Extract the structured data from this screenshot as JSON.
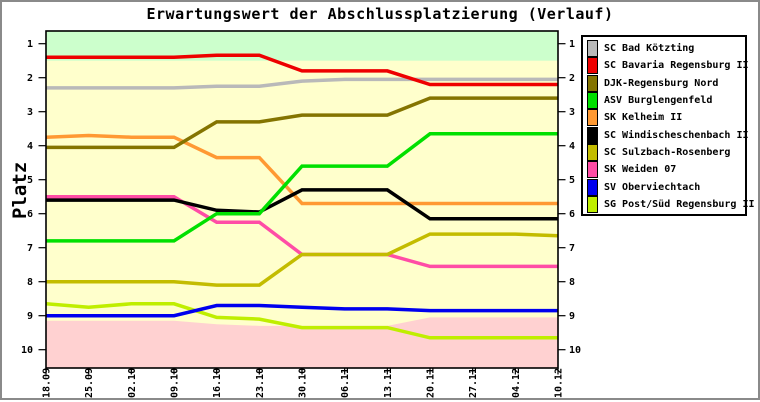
{
  "frame": {
    "border_color": "#8a8a8a",
    "background": "#ffffff"
  },
  "chart_data": {
    "type": "line",
    "title": "Erwartungswert der Abschlussplatzierung (Verlauf)",
    "ylabel": "Platz",
    "y_axis": {
      "ticks": [
        1,
        2,
        3,
        4,
        5,
        6,
        7,
        8,
        9,
        10
      ],
      "inverted": true,
      "top_visible": 0.63,
      "bottom_visible": 10.55
    },
    "x_axis": {
      "tick_labels": [
        "18.09",
        "25.09",
        "02.10",
        "09.10",
        "16.10",
        "23.10",
        "30.10",
        "06.11",
        "13.11",
        "20.11",
        "27.11",
        "04.12",
        "10.12"
      ],
      "rotation_deg": -90
    },
    "zones": {
      "promotion": {
        "color": "#ccffcc",
        "to_place": 1.5
      },
      "neutral": {
        "color": "#ffffcc"
      },
      "relegation": {
        "color": "#ffd1d1",
        "boundary_by_date": [
          9.15,
          9.15,
          9.15,
          9.15,
          9.25,
          9.3,
          9.3,
          9.3,
          9.3,
          9.05,
          9.05,
          9.05,
          9.05
        ]
      }
    },
    "series": [
      {
        "name": "SC Bad Kötzting",
        "color": "#b9b9b9",
        "values": [
          2.3,
          2.3,
          2.3,
          2.3,
          2.25,
          2.25,
          2.1,
          2.05,
          2.05,
          2.05,
          2.05,
          2.05,
          2.05
        ]
      },
      {
        "name": "SC Bavaria Regensburg II",
        "color": "#ee0000",
        "values": [
          1.4,
          1.4,
          1.4,
          1.4,
          1.34,
          1.34,
          1.8,
          1.8,
          1.8,
          2.2,
          2.2,
          2.2,
          2.2
        ]
      },
      {
        "name": "DJK-Regensburg Nord",
        "color": "#847400",
        "values": [
          4.05,
          4.05,
          4.05,
          4.05,
          3.3,
          3.3,
          3.1,
          3.1,
          3.1,
          2.6,
          2.6,
          2.6,
          2.6
        ]
      },
      {
        "name": "ASV Burglengenfeld",
        "color": "#00e000",
        "values": [
          6.8,
          6.8,
          6.8,
          6.8,
          6.0,
          6.0,
          4.6,
          4.6,
          4.6,
          3.65,
          3.65,
          3.65,
          3.65
        ]
      },
      {
        "name": "SK Kelheim II",
        "color": "#ff9933",
        "values": [
          3.75,
          3.7,
          3.75,
          3.75,
          4.35,
          4.35,
          5.7,
          5.7,
          5.7,
          5.7,
          5.7,
          5.7,
          5.7
        ]
      },
      {
        "name": "SC Windischeschenbach II",
        "color": "#000000",
        "values": [
          5.6,
          5.6,
          5.6,
          5.6,
          5.9,
          5.95,
          5.3,
          5.3,
          5.3,
          6.15,
          6.15,
          6.15,
          6.15
        ]
      },
      {
        "name": "SC Sulzbach-Rosenberg",
        "color": "#c3bc00",
        "values": [
          8.0,
          8.0,
          8.0,
          8.0,
          8.1,
          8.1,
          7.2,
          7.2,
          7.2,
          6.6,
          6.6,
          6.6,
          6.65
        ]
      },
      {
        "name": "SK Weiden 07",
        "color": "#ff4da6",
        "values": [
          5.5,
          5.5,
          5.5,
          5.5,
          6.25,
          6.25,
          7.2,
          7.2,
          7.2,
          7.55,
          7.55,
          7.55,
          7.55
        ]
      },
      {
        "name": "SV Oberviechtach",
        "color": "#0000ee",
        "values": [
          9.0,
          9.0,
          9.0,
          9.0,
          8.7,
          8.7,
          8.75,
          8.8,
          8.8,
          8.85,
          8.85,
          8.85,
          8.85
        ]
      },
      {
        "name": "SG Post/Süd Regensburg II",
        "color": "#bfee00",
        "values": [
          8.65,
          8.75,
          8.65,
          8.65,
          9.05,
          9.1,
          9.35,
          9.35,
          9.35,
          9.65,
          9.65,
          9.65,
          9.65
        ]
      }
    ],
    "draw_order": [
      9,
      8,
      7,
      6,
      4,
      5,
      3,
      2,
      0,
      1
    ],
    "line_width": 3.5,
    "legend_position": "top-right"
  }
}
